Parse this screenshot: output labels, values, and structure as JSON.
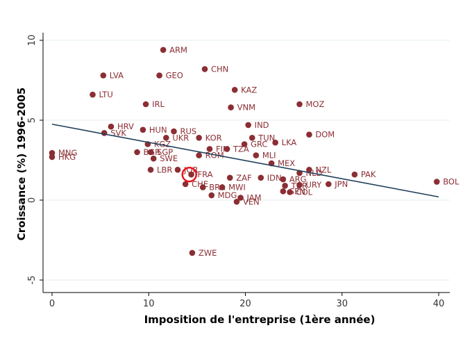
{
  "chart_data": {
    "type": "scatter",
    "xlabel": "Imposition de l'entreprise (1ère année)",
    "ylabel": "Croissance (%) 1996-2005",
    "xlim": [
      -1,
      41
    ],
    "ylim": [
      -5.6,
      10.6
    ],
    "xticks": [
      0,
      10,
      20,
      30,
      40
    ],
    "yticks": [
      -5,
      0,
      5,
      10
    ],
    "grid": "horizontal",
    "colors": {
      "point": "#8b2e33",
      "label": "#8b2e33",
      "fit": "#1f3f5b",
      "highlight": "#e8141b",
      "grid": "#e6ecef"
    },
    "fit_line": {
      "x": [
        0,
        40
      ],
      "y": [
        4.75,
        0.2
      ]
    },
    "highlight": {
      "x": 14.2,
      "y": 1.6
    },
    "points": [
      {
        "label": "ARM",
        "x": 11.5,
        "y": 9.4
      },
      {
        "label": "CHN",
        "x": 15.8,
        "y": 8.2
      },
      {
        "label": "LVA",
        "x": 5.3,
        "y": 7.8
      },
      {
        "label": "GEO",
        "x": 11.1,
        "y": 7.8
      },
      {
        "label": "KAZ",
        "x": 18.9,
        "y": 6.9
      },
      {
        "label": "LTU",
        "x": 4.2,
        "y": 6.6
      },
      {
        "label": "IRL",
        "x": 9.7,
        "y": 6.0
      },
      {
        "label": "MOZ",
        "x": 25.6,
        "y": 6.0
      },
      {
        "label": "VNM",
        "x": 18.5,
        "y": 5.8
      },
      {
        "label": "IND",
        "x": 20.3,
        "y": 4.7
      },
      {
        "label": "HRV",
        "x": 6.1,
        "y": 4.6
      },
      {
        "label": "HUN",
        "x": 9.4,
        "y": 4.4
      },
      {
        "label": "RUS",
        "x": 12.6,
        "y": 4.3
      },
      {
        "label": "DOM",
        "x": 26.6,
        "y": 4.1
      },
      {
        "label": "SVK",
        "x": 5.4,
        "y": 4.2
      },
      {
        "label": "UKR",
        "x": 11.8,
        "y": 3.9
      },
      {
        "label": "KOR",
        "x": 15.2,
        "y": 3.9
      },
      {
        "label": "TUN",
        "x": 20.7,
        "y": 3.9
      },
      {
        "label": "LKA",
        "x": 23.1,
        "y": 3.6
      },
      {
        "label": "GRC",
        "x": 19.9,
        "y": 3.5
      },
      {
        "label": "KGZ",
        "x": 9.9,
        "y": 3.5
      },
      {
        "label": "FIN",
        "x": 16.3,
        "y": 3.2
      },
      {
        "label": "TZA",
        "x": 18.1,
        "y": 3.2
      },
      {
        "label": "BGR",
        "x": 8.8,
        "y": 3.0
      },
      {
        "label": "SGP",
        "x": 10.2,
        "y": 3.0
      },
      {
        "label": "MNG",
        "x": 0.0,
        "y": 2.95
      },
      {
        "label": "HKG",
        "x": 0.0,
        "y": 2.7
      },
      {
        "label": "MLI",
        "x": 21.1,
        "y": 2.8
      },
      {
        "label": "ROM",
        "x": 15.2,
        "y": 2.8
      },
      {
        "label": "SWE",
        "x": 10.5,
        "y": 2.6
      },
      {
        "label": "MEX",
        "x": 22.7,
        "y": 2.3
      },
      {
        "label": "NZL",
        "x": 26.6,
        "y": 1.9
      },
      {
        "label": "LBR",
        "x": 10.2,
        "y": 1.9
      },
      {
        "label": "JOR",
        "x": 13.0,
        "y": 1.9
      },
      {
        "label": "NLD",
        "x": 25.6,
        "y": 1.7
      },
      {
        "label": "PAK",
        "x": 31.3,
        "y": 1.6
      },
      {
        "label": "FRA",
        "x": 14.4,
        "y": 1.6
      },
      {
        "label": "ZAF",
        "x": 18.4,
        "y": 1.4
      },
      {
        "label": "IDN",
        "x": 21.6,
        "y": 1.4
      },
      {
        "label": "ARG",
        "x": 23.9,
        "y": 1.3
      },
      {
        "label": "BOL",
        "x": 39.8,
        "y": 1.15
      },
      {
        "label": "JPN",
        "x": 28.6,
        "y": 1.0
      },
      {
        "label": "CHE",
        "x": 13.8,
        "y": 1.0
      },
      {
        "label": "URY",
        "x": 25.6,
        "y": 0.95
      },
      {
        "label": "TUR",
        "x": 24.1,
        "y": 0.9
      },
      {
        "label": "BRA",
        "x": 15.6,
        "y": 0.8
      },
      {
        "label": "MWI",
        "x": 17.6,
        "y": 0.8
      },
      {
        "label": "SEN",
        "x": 23.9,
        "y": 0.55
      },
      {
        "label": "COL",
        "x": 24.6,
        "y": 0.5
      },
      {
        "label": "MDG",
        "x": 16.5,
        "y": 0.3
      },
      {
        "label": "JAM",
        "x": 19.5,
        "y": 0.15
      },
      {
        "label": "VEN",
        "x": 19.1,
        "y": -0.1
      },
      {
        "label": "ZWE",
        "x": 14.5,
        "y": -3.3
      }
    ]
  }
}
